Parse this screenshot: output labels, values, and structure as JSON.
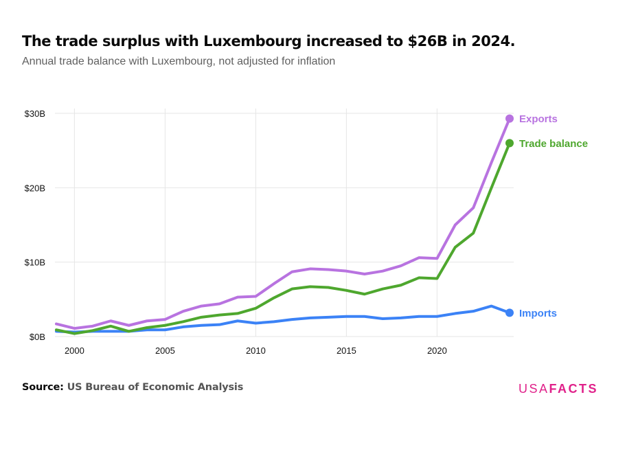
{
  "header": {
    "title": "The trade surplus with Luxembourg increased to $26B in 2024.",
    "subtitle": "Annual trade balance with Luxembourg, not adjusted for inflation"
  },
  "footer": {
    "source_label": "Source:",
    "source_value": "US Bureau of Economic Analysis",
    "logo_light": "USA",
    "logo_bold": "FACTS",
    "logo_color": "#e0218a"
  },
  "chart_data": {
    "type": "line",
    "title": "The trade surplus with Luxembourg increased to $26B in 2024.",
    "subtitle": "Annual trade balance with Luxembourg, not adjusted for inflation",
    "xlabel": "",
    "ylabel": "",
    "x": [
      1999,
      2000,
      2001,
      2002,
      2003,
      2004,
      2005,
      2006,
      2007,
      2008,
      2009,
      2010,
      2011,
      2012,
      2013,
      2014,
      2015,
      2016,
      2017,
      2018,
      2019,
      2020,
      2021,
      2022,
      2023,
      2024
    ],
    "xlim": [
      1999,
      2024
    ],
    "ylim": [
      0,
      30
    ],
    "x_ticks": [
      2000,
      2005,
      2010,
      2015,
      2020
    ],
    "x_tick_labels": [
      "2000",
      "2005",
      "2010",
      "2015",
      "2020"
    ],
    "y_ticks": [
      0,
      10,
      20,
      30
    ],
    "y_tick_labels": [
      "$0B",
      "$10B",
      "$20B",
      "$30B"
    ],
    "grid": true,
    "legend": "end-of-line labels (right)",
    "units": "billions USD",
    "series": [
      {
        "name": "Exports",
        "color": "#b873e0",
        "values": [
          1.7,
          1.1,
          1.4,
          2.1,
          1.5,
          2.1,
          2.3,
          3.4,
          4.1,
          4.4,
          5.3,
          5.4,
          7.1,
          8.7,
          9.1,
          9.0,
          8.8,
          8.4,
          8.8,
          9.5,
          10.6,
          10.5,
          15.0,
          17.3,
          23.4,
          29.3
        ]
      },
      {
        "name": "Trade balance",
        "color": "#4ea72e",
        "values": [
          0.9,
          0.4,
          0.8,
          1.4,
          0.7,
          1.2,
          1.5,
          2.0,
          2.6,
          2.9,
          3.1,
          3.8,
          5.2,
          6.4,
          6.7,
          6.6,
          6.2,
          5.7,
          6.4,
          6.9,
          7.9,
          7.8,
          12.0,
          13.9,
          20.0,
          26.0
        ]
      },
      {
        "name": "Imports",
        "color": "#3b82f6",
        "values": [
          0.7,
          0.6,
          0.7,
          0.7,
          0.7,
          0.9,
          0.9,
          1.3,
          1.5,
          1.6,
          2.1,
          1.8,
          2.0,
          2.3,
          2.5,
          2.6,
          2.7,
          2.7,
          2.4,
          2.5,
          2.7,
          2.7,
          3.1,
          3.4,
          4.1,
          3.2
        ]
      }
    ]
  }
}
